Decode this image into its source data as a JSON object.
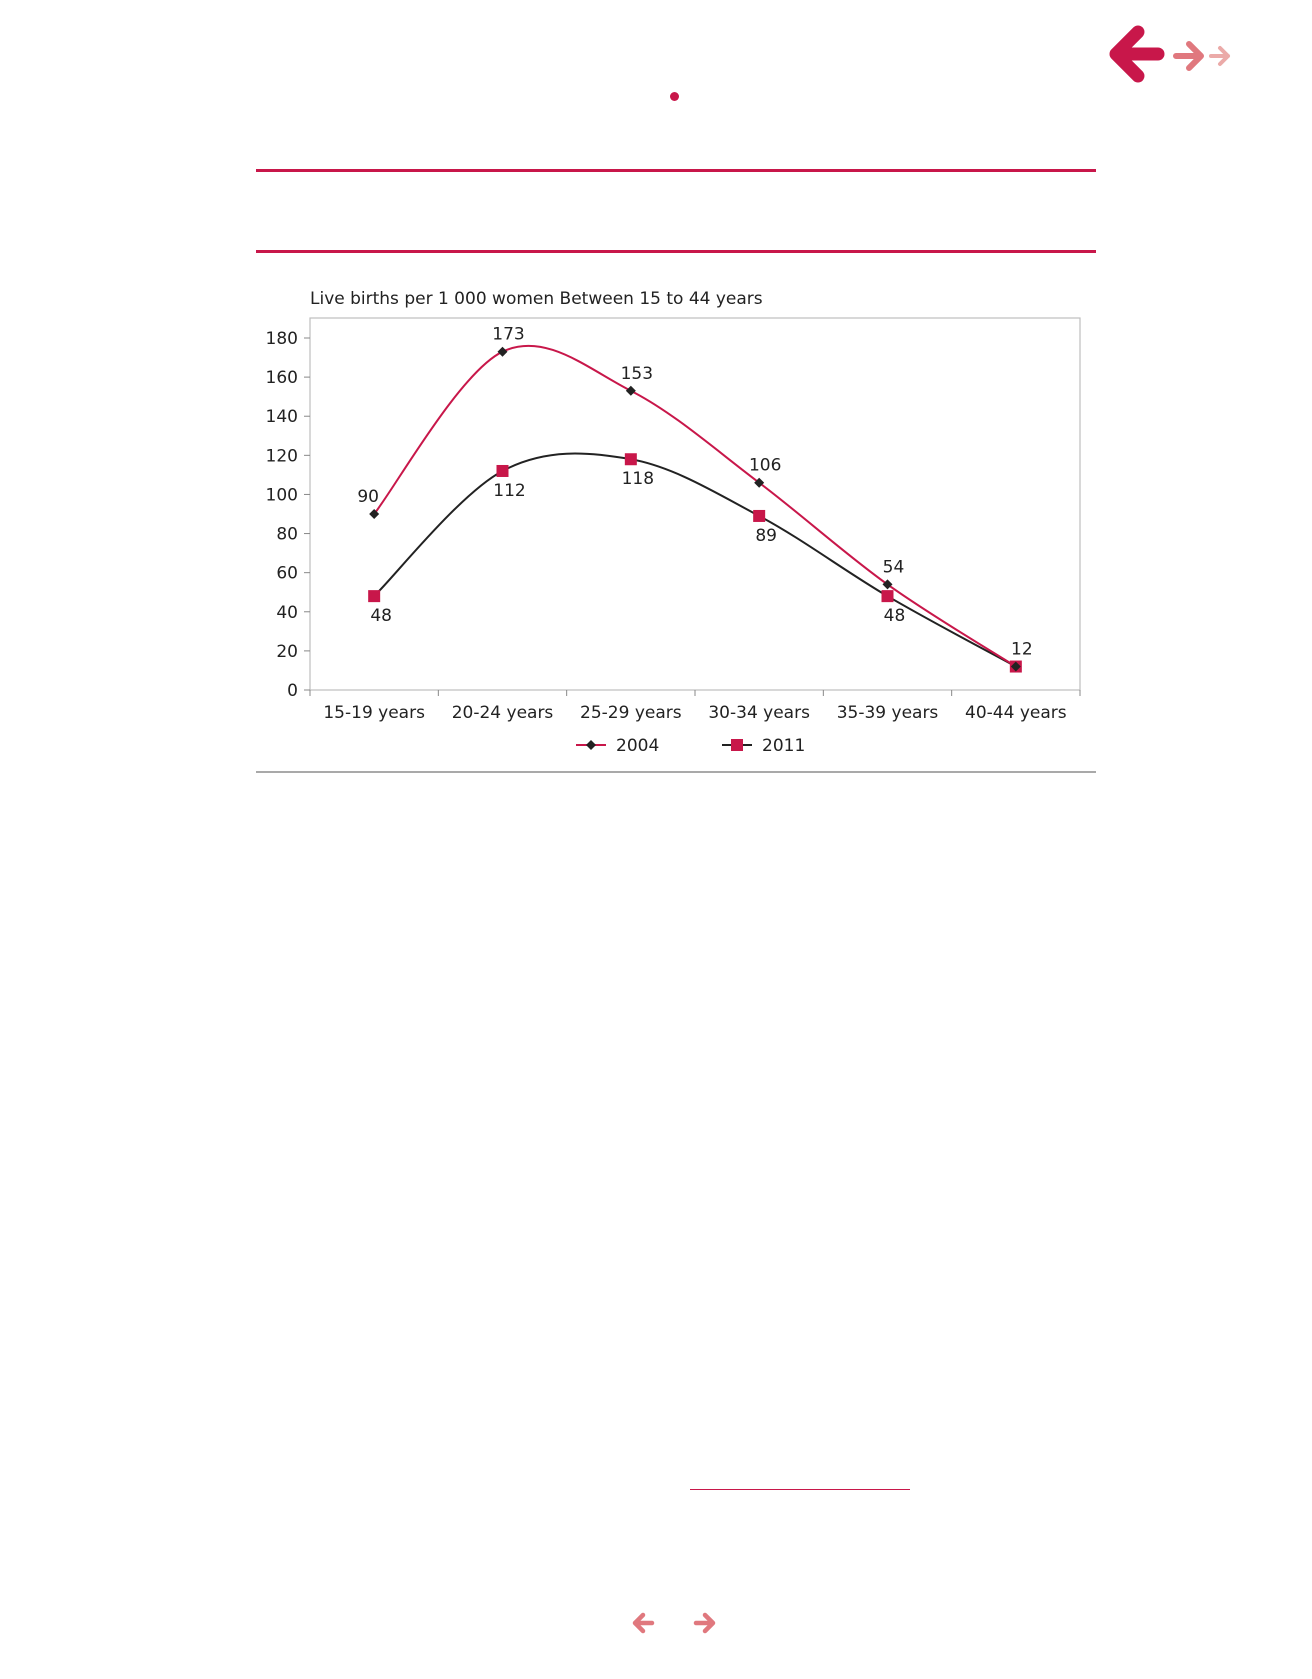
{
  "colors": {
    "accent": "#c8174a",
    "accent_light": "#e0787e",
    "accent_lighter": "#ebaaa8",
    "series_2004_marker": "#222222",
    "series_2011_marker": "#c8174a",
    "series_2004_line": "#c8174a",
    "series_2011_line": "#222222",
    "grey_rule": "#a9a9a9",
    "axis": "#bdbdbd"
  },
  "navigation": {
    "top": {
      "back_icon": "arrow-left-icon",
      "next_icon": "arrow-right-icon",
      "next_small_icon": "arrow-right-small-icon"
    },
    "bottom": {
      "prev_icon": "arrow-left-icon",
      "next_icon": "arrow-right-icon"
    }
  },
  "chart_data": {
    "type": "line",
    "title": "Live births per 1 000 women Between 15 to 44 years",
    "xlabel": "",
    "ylabel": "",
    "categories": [
      "15-19 years",
      "20-24 years",
      "25-29 years",
      "30-34 years",
      "35-39 years",
      "40-44 years"
    ],
    "ylim": [
      0,
      180
    ],
    "yticks": [
      0,
      20,
      40,
      60,
      80,
      100,
      120,
      140,
      160,
      180
    ],
    "grid": false,
    "legend": "bottom",
    "smooth": true,
    "series": [
      {
        "name": "2004",
        "values": [
          90,
          173,
          153,
          106,
          54,
          12
        ],
        "labels": [
          "90",
          "173",
          "153",
          "106",
          "54",
          "12"
        ],
        "marker": "diamond"
      },
      {
        "name": "2011",
        "values": [
          48,
          112,
          118,
          89,
          48,
          12
        ],
        "labels": [
          "48",
          "112",
          "118",
          "89",
          "48",
          ""
        ],
        "marker": "square"
      }
    ]
  }
}
